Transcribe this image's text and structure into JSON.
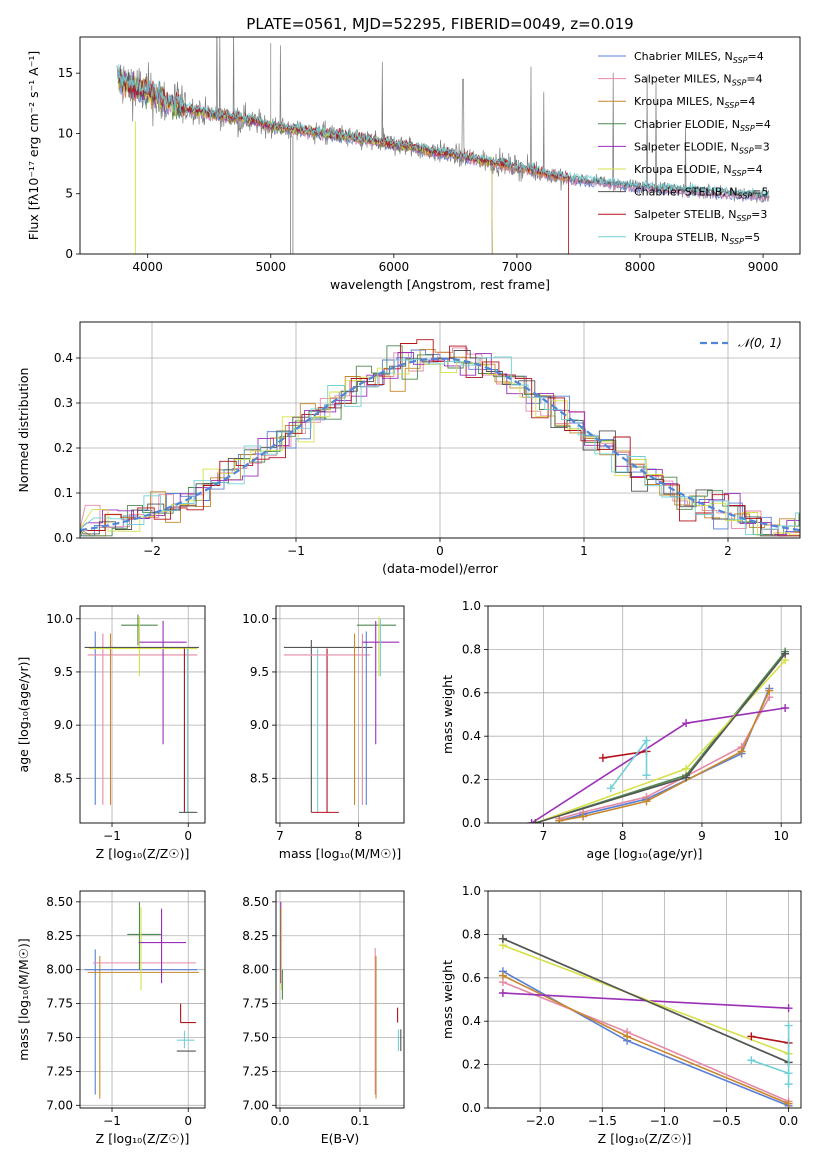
{
  "figure_title": "PLATE=0561, MJD=52295, FIBERID=0049, z=0.019",
  "colors": {
    "Chabrier MILES": "#5a7fd6",
    "Salpeter MILES": "#e58aa6",
    "Kroupa MILES": "#c8872a",
    "Chabrier ELODIE": "#4f8a4f",
    "Salpeter ELODIE": "#9c2fb7",
    "Kroupa ELODIE": "#d6e04a",
    "Chabrier STELIB": "#555555",
    "Salpeter STELIB": "#b3121b",
    "Kroupa STELIB": "#72d0d6",
    "gaussian": "#4f86d6"
  },
  "chart_data": [
    {
      "id": "spectrum",
      "type": "line",
      "xlabel": "wavelength [Angstrom, rest frame]",
      "ylabel": "Flux [fλ10⁻¹⁷ erg cm⁻² s⁻¹ A⁻¹]",
      "xlim": [
        3450,
        9300
      ],
      "ylim": [
        0,
        18
      ],
      "xticks": [
        4000,
        5000,
        6000,
        7000,
        8000,
        9000
      ],
      "yticks": [
        0,
        5,
        10,
        15
      ],
      "grid": false,
      "legend_position": "top-right",
      "legend": [
        {
          "name": "Chabrier MILES",
          "sub": "SSP",
          "n": "4"
        },
        {
          "name": "Salpeter MILES",
          "sub": "SSP",
          "n": "4"
        },
        {
          "name": "Kroupa MILES",
          "sub": "SSP",
          "n": "4"
        },
        {
          "name": "Chabrier ELODIE",
          "sub": "SSP",
          "n": "4"
        },
        {
          "name": "Salpeter ELODIE",
          "sub": "SSP",
          "n": "3"
        },
        {
          "name": "Kroupa ELODIE",
          "sub": "SSP",
          "n": "4"
        },
        {
          "name": "Chabrier STELIB",
          "sub": "SSP",
          "n": "5"
        },
        {
          "name": "Salpeter STELIB",
          "sub": "SSP",
          "n": "3"
        },
        {
          "name": "Kroupa STELIB",
          "sub": "SSP",
          "n": "5"
        }
      ],
      "continuum": [
        [
          3750,
          14.5
        ],
        [
          3900,
          13.8
        ],
        [
          4000,
          13.4
        ],
        [
          4200,
          12.4
        ],
        [
          4500,
          11.6
        ],
        [
          4800,
          11.2
        ],
        [
          5000,
          10.6
        ],
        [
          5500,
          9.9
        ],
        [
          6000,
          9.1
        ],
        [
          6500,
          8.2
        ],
        [
          7000,
          7.2
        ],
        [
          7400,
          6.3
        ],
        [
          7800,
          5.8
        ],
        [
          8200,
          5.4
        ],
        [
          8600,
          5.1
        ],
        [
          9050,
          4.8
        ]
      ]
    },
    {
      "id": "residuals",
      "type": "line",
      "xlabel": "(data-model)/error",
      "ylabel": "Normed distribution",
      "xlim": [
        -2.5,
        2.5
      ],
      "ylim": [
        0,
        0.48
      ],
      "xticks": [
        -2,
        -1,
        0,
        1,
        2
      ],
      "xticklabels": [
        "−2",
        "−1",
        "0",
        "1",
        "2"
      ],
      "yticks": [
        0,
        0.1,
        0.2,
        0.3,
        0.4
      ],
      "grid": true,
      "legend_position": "top-right",
      "legend_label": "𝒩(0, 1)"
    },
    {
      "id": "age_vs_Z",
      "type": "scatter",
      "xlabel": "Z [log₁₀(Z/Z☉)]",
      "ylabel": "age  [log₁₀(age/yr)]",
      "xlim": [
        -1.42,
        0.22
      ],
      "ylim": [
        8.08,
        10.12
      ],
      "xticks": [
        -1,
        0
      ],
      "xticklabels": [
        "−1",
        "0"
      ],
      "yticks": [
        8.5,
        9.0,
        9.5,
        10.0
      ],
      "grid": true,
      "points": [
        {
          "s": "Chabrier MILES",
          "x": -1.22,
          "y": 9.05,
          "xlo": -1.22,
          "xhi": -1.22,
          "ylo": 8.25,
          "yhi": 9.88
        },
        {
          "s": "Salpeter MILES",
          "x": -0.5,
          "y": 9.66,
          "xlo": -1.32,
          "xhi": 0.12,
          "ylo": 9.66,
          "yhi": 9.66
        },
        {
          "s": "Salpeter MILES",
          "x": -1.12,
          "y": 9.05,
          "xlo": -1.12,
          "xhi": -1.12,
          "ylo": 8.25,
          "yhi": 9.86
        },
        {
          "s": "Kroupa MILES",
          "x": -1.02,
          "y": 9.05,
          "xlo": -1.02,
          "xhi": -1.02,
          "ylo": 8.25,
          "yhi": 9.86
        },
        {
          "s": "Chabrier ELODIE",
          "x": -0.66,
          "y": 9.94,
          "xlo": -0.88,
          "xhi": -0.4,
          "ylo": 9.75,
          "yhi": 10.04
        },
        {
          "s": "Kroupa ELODIE",
          "x": -0.64,
          "y": 9.75,
          "xlo": -0.64,
          "xhi": -0.64,
          "ylo": 9.46,
          "yhi": 10.02
        },
        {
          "s": "Salpeter ELODIE",
          "x": -0.33,
          "y": 9.78,
          "xlo": -0.64,
          "xhi": -0.02,
          "ylo": 8.82,
          "yhi": 9.98
        },
        {
          "s": "Chabrier STELIB",
          "x": -0.45,
          "y": 9.73,
          "xlo": -1.36,
          "xhi": 0.14,
          "ylo": 9.73,
          "yhi": 9.73
        },
        {
          "s": "Kroupa ELODIE",
          "x": -0.5,
          "y": 9.72,
          "xlo": -1.3,
          "xhi": 0.12,
          "ylo": 9.72,
          "yhi": 9.72
        },
        {
          "s": "Salpeter STELIB",
          "x": -0.05,
          "y": 9.0,
          "xlo": -0.05,
          "xhi": -0.05,
          "ylo": 8.18,
          "yhi": 9.72
        },
        {
          "s": "Kroupa STELIB",
          "x": -0.01,
          "y": 8.18,
          "xlo": -0.12,
          "xhi": 0.1,
          "ylo": 8.18,
          "yhi": 9.72
        },
        {
          "s": "Chabrier STELIB",
          "x": 0.0,
          "y": 8.18,
          "xlo": -0.12,
          "xhi": 0.12,
          "ylo": 8.18,
          "yhi": 8.18
        }
      ]
    },
    {
      "id": "age_vs_mass",
      "type": "scatter",
      "xlabel": "mass [log₁₀(M/M☉)]",
      "ylabel": "",
      "xlim": [
        6.95,
        8.58
      ],
      "ylim": [
        8.08,
        10.12
      ],
      "xticks": [
        7,
        8
      ],
      "xticklabels": [
        "7",
        "8"
      ],
      "yticks": [
        8.5,
        9.0,
        9.5,
        10.0
      ],
      "grid": true,
      "points": [
        {
          "s": "Chabrier STELIB",
          "x": 7.4,
          "y": 9.0,
          "xlo": 7.4,
          "xhi": 7.4,
          "ylo": 8.18,
          "yhi": 9.8
        },
        {
          "s": "Kroupa STELIB",
          "x": 7.48,
          "y": 9.0,
          "xlo": 7.48,
          "xhi": 7.48,
          "ylo": 8.18,
          "yhi": 9.72
        },
        {
          "s": "Salpeter STELIB",
          "x": 7.6,
          "y": 9.0,
          "xlo": 7.6,
          "xhi": 7.6,
          "ylo": 8.18,
          "yhi": 9.72
        },
        {
          "s": "Salpeter STELIB",
          "x": 7.6,
          "y": 8.18,
          "xlo": 7.4,
          "xhi": 7.75,
          "ylo": 8.18,
          "yhi": 8.18
        },
        {
          "s": "Chabrier STELIB",
          "x": 7.8,
          "y": 9.73,
          "xlo": 7.05,
          "xhi": 8.18,
          "ylo": 9.73,
          "yhi": 9.73
        },
        {
          "s": "Salpeter MILES",
          "x": 7.8,
          "y": 9.66,
          "xlo": 7.05,
          "xhi": 8.15,
          "ylo": 9.66,
          "yhi": 9.66
        },
        {
          "s": "Kroupa MILES",
          "x": 7.95,
          "y": 9.0,
          "xlo": 7.95,
          "xhi": 7.95,
          "ylo": 8.25,
          "yhi": 9.86
        },
        {
          "s": "Salpeter MILES",
          "x": 8.05,
          "y": 9.0,
          "xlo": 8.05,
          "xhi": 8.05,
          "ylo": 8.25,
          "yhi": 9.86
        },
        {
          "s": "Chabrier MILES",
          "x": 8.1,
          "y": 9.0,
          "xlo": 8.1,
          "xhi": 8.1,
          "ylo": 8.25,
          "yhi": 9.88
        },
        {
          "s": "Chabrier ELODIE",
          "x": 8.26,
          "y": 9.94,
          "xlo": 7.98,
          "xhi": 8.48,
          "ylo": 9.94,
          "yhi": 9.94
        },
        {
          "s": "Kroupa ELODIE",
          "x": 8.26,
          "y": 9.75,
          "xlo": 8.26,
          "xhi": 8.26,
          "ylo": 9.46,
          "yhi": 10.02
        },
        {
          "s": "Salpeter ELODIE",
          "x": 8.22,
          "y": 9.78,
          "xlo": 8.05,
          "xhi": 8.52,
          "ylo": 8.82,
          "yhi": 9.98
        },
        {
          "s": "Kroupa STELIB",
          "x": 8.28,
          "y": 9.72,
          "xlo": 8.28,
          "xhi": 8.28,
          "ylo": 9.46,
          "yhi": 10.0
        }
      ]
    },
    {
      "id": "weight_vs_age",
      "type": "line",
      "xlabel": "age  [log₁₀(age/yr)]",
      "ylabel": "mass weight",
      "xlim": [
        6.3,
        10.25
      ],
      "ylim": [
        0,
        1
      ],
      "xticks": [
        7,
        8,
        9,
        10
      ],
      "xticklabels": [
        "7",
        "8",
        "9",
        "10"
      ],
      "yticks": [
        0,
        0.2,
        0.4,
        0.6,
        0.8,
        1.0
      ],
      "grid": true,
      "series": [
        {
          "name": "Chabrier MILES",
          "x": [
            7.2,
            7.5,
            8.3,
            9.5,
            9.85
          ],
          "y": [
            0.01,
            0.04,
            0.11,
            0.32,
            0.62
          ]
        },
        {
          "name": "Salpeter MILES",
          "x": [
            7.2,
            7.5,
            8.3,
            9.5,
            9.85
          ],
          "y": [
            0.02,
            0.05,
            0.12,
            0.35,
            0.58
          ]
        },
        {
          "name": "Kroupa MILES",
          "x": [
            7.2,
            7.5,
            8.3,
            9.5,
            9.85
          ],
          "y": [
            0.01,
            0.03,
            0.1,
            0.33,
            0.61
          ]
        },
        {
          "name": "Chabrier ELODIE",
          "x": [
            6.9,
            8.8,
            10.05
          ],
          "y": [
            0.0,
            0.22,
            0.79
          ]
        },
        {
          "name": "Salpeter ELODIE",
          "x": [
            6.85,
            8.8,
            10.05
          ],
          "y": [
            0.0,
            0.46,
            0.53
          ]
        },
        {
          "name": "Kroupa ELODIE",
          "x": [
            6.9,
            8.8,
            10.05
          ],
          "y": [
            0.0,
            0.25,
            0.75
          ]
        },
        {
          "name": "Chabrier STELIB",
          "x": [
            6.9,
            8.8,
            10.05
          ],
          "y": [
            0.0,
            0.21,
            0.78
          ]
        },
        {
          "name": "Salpeter STELIB",
          "x": [
            7.75,
            8.3
          ],
          "y": [
            0.3,
            0.33
          ]
        },
        {
          "name": "Kroupa STELIB",
          "x": [
            7.85,
            8.3,
            8.3
          ],
          "y": [
            0.16,
            0.38,
            0.22
          ]
        }
      ]
    },
    {
      "id": "mass_vs_Z",
      "type": "scatter",
      "xlabel": "Z [log₁₀(Z/Z☉)]",
      "ylabel": "mass [log₁₀(M/M☉)]",
      "xlim": [
        -1.42,
        0.22
      ],
      "ylim": [
        6.98,
        8.58
      ],
      "xticks": [
        -1,
        0
      ],
      "xticklabels": [
        "−1",
        "0"
      ],
      "yticks": [
        7.0,
        7.25,
        7.5,
        7.75,
        8.0,
        8.25,
        8.5
      ],
      "grid": true,
      "points": [
        {
          "s": "Chabrier MILES",
          "x": -1.22,
          "y": 7.6,
          "xlo": -1.22,
          "xhi": -1.22,
          "ylo": 7.08,
          "yhi": 8.15
        },
        {
          "s": "Kroupa MILES",
          "x": -1.16,
          "y": 7.6,
          "xlo": -1.16,
          "xhi": -1.16,
          "ylo": 7.05,
          "yhi": 8.1
        },
        {
          "s": "Salpeter MILES",
          "x": -0.4,
          "y": 8.05,
          "xlo": -1.25,
          "xhi": 0.1,
          "ylo": 8.05,
          "yhi": 8.05
        },
        {
          "s": "Kroupa MILES",
          "x": -0.5,
          "y": 7.98,
          "xlo": -1.32,
          "xhi": 0.14,
          "ylo": 7.98,
          "yhi": 7.98
        },
        {
          "s": "Chabrier MILES",
          "x": -0.5,
          "y": 8.0,
          "xlo": -1.36,
          "xhi": 0.12,
          "ylo": 8.0,
          "yhi": 8.0
        },
        {
          "s": "Chabrier ELODIE",
          "x": -0.64,
          "y": 8.26,
          "xlo": -0.8,
          "xhi": -0.35,
          "ylo": 8.0,
          "yhi": 8.5
        },
        {
          "s": "Kroupa ELODIE",
          "x": -0.62,
          "y": 8.22,
          "xlo": -0.62,
          "xhi": -0.62,
          "ylo": 7.85,
          "yhi": 8.46
        },
        {
          "s": "Salpeter ELODIE",
          "x": -0.35,
          "y": 8.2,
          "xlo": -0.65,
          "xhi": -0.03,
          "ylo": 7.9,
          "yhi": 8.45
        },
        {
          "s": "Salpeter STELIB",
          "x": -0.1,
          "y": 7.61,
          "xlo": -0.1,
          "xhi": 0.1,
          "ylo": 7.61,
          "yhi": 7.75
        },
        {
          "s": "Kroupa STELIB",
          "x": -0.05,
          "y": 7.48,
          "xlo": -0.15,
          "xhi": 0.08,
          "ylo": 7.42,
          "yhi": 7.55
        },
        {
          "s": "Chabrier STELIB",
          "x": -0.02,
          "y": 7.4,
          "xlo": -0.15,
          "xhi": 0.1,
          "ylo": 7.4,
          "yhi": 7.4
        }
      ]
    },
    {
      "id": "mass_vs_EBV",
      "type": "scatter",
      "xlabel": "E(B-V)",
      "ylabel": "",
      "xlim": [
        -0.005,
        0.155
      ],
      "ylim": [
        6.98,
        8.58
      ],
      "xticks": [
        0.0,
        0.1
      ],
      "xticklabels": [
        "0.0",
        "0.1"
      ],
      "yticks": [
        7.0,
        7.25,
        7.5,
        7.75,
        8.0,
        8.25,
        8.5
      ],
      "grid": true,
      "points": [
        {
          "s": "Salpeter ELODIE",
          "x": 0.001,
          "y": 8.2,
          "xlo": 0.001,
          "xhi": 0.001,
          "ylo": 7.9,
          "yhi": 8.5
        },
        {
          "s": "Kroupa ELODIE",
          "x": 0.002,
          "y": 8.1,
          "xlo": 0.002,
          "xhi": 0.002,
          "ylo": 7.85,
          "yhi": 8.46
        },
        {
          "s": "Chabrier ELODIE",
          "x": 0.003,
          "y": 7.9,
          "xlo": 0.003,
          "xhi": 0.003,
          "ylo": 7.78,
          "yhi": 8.0
        },
        {
          "s": "Salpeter MILES",
          "x": 0.119,
          "y": 7.6,
          "xlo": 0.119,
          "xhi": 0.119,
          "ylo": 7.08,
          "yhi": 8.16
        },
        {
          "s": "Kroupa MILES",
          "x": 0.12,
          "y": 7.6,
          "xlo": 0.12,
          "xhi": 0.12,
          "ylo": 7.05,
          "yhi": 8.1
        },
        {
          "s": "Salpeter STELIB",
          "x": 0.147,
          "y": 7.65,
          "xlo": 0.147,
          "xhi": 0.147,
          "ylo": 7.61,
          "yhi": 7.72
        },
        {
          "s": "Kroupa STELIB",
          "x": 0.148,
          "y": 7.48,
          "xlo": 0.148,
          "xhi": 0.148,
          "ylo": 7.4,
          "yhi": 7.56
        },
        {
          "s": "Chabrier STELIB",
          "x": 0.151,
          "y": 7.48,
          "xlo": 0.151,
          "xhi": 0.151,
          "ylo": 7.4,
          "yhi": 7.56
        }
      ]
    },
    {
      "id": "weight_vs_Z",
      "type": "line",
      "xlabel": "Z [log₁₀(Z/Z☉)]",
      "ylabel": "mass weight",
      "xlim": [
        -2.42,
        0.1
      ],
      "ylim": [
        0,
        1
      ],
      "xticks": [
        -2.0,
        -1.5,
        -1.0,
        -0.5,
        0.0
      ],
      "xticklabels": [
        "−2.0",
        "−1.5",
        "−1.0",
        "−0.5",
        "0.0"
      ],
      "yticks": [
        0,
        0.2,
        0.4,
        0.6,
        0.8,
        1.0
      ],
      "grid": true,
      "series": [
        {
          "name": "Chabrier MILES",
          "x": [
            -2.3,
            -1.3,
            0.0
          ],
          "y": [
            0.63,
            0.31,
            0.01
          ]
        },
        {
          "name": "Salpeter MILES",
          "x": [
            -2.3,
            -1.3,
            0.0
          ],
          "y": [
            0.58,
            0.35,
            0.03
          ]
        },
        {
          "name": "Kroupa MILES",
          "x": [
            -2.3,
            -1.3,
            0.0
          ],
          "y": [
            0.61,
            0.33,
            0.02
          ]
        },
        {
          "name": "Chabrier ELODIE",
          "x": [
            -2.3,
            0.0
          ],
          "y": [
            0.78,
            0.21
          ]
        },
        {
          "name": "Salpeter ELODIE",
          "x": [
            -2.3,
            0.0
          ],
          "y": [
            0.53,
            0.46
          ]
        },
        {
          "name": "Kroupa ELODIE",
          "x": [
            -2.3,
            0.0
          ],
          "y": [
            0.75,
            0.25
          ]
        },
        {
          "name": "Chabrier STELIB",
          "x": [
            -2.3,
            0.0
          ],
          "y": [
            0.78,
            0.21
          ]
        },
        {
          "name": "Salpeter STELIB",
          "x": [
            -0.3,
            0.0
          ],
          "y": [
            0.33,
            0.3
          ]
        },
        {
          "name": "Kroupa STELIB",
          "x": [
            -0.3,
            0.0,
            0.0,
            0.0
          ],
          "y": [
            0.22,
            0.16,
            0.38,
            0.11
          ]
        }
      ]
    }
  ]
}
